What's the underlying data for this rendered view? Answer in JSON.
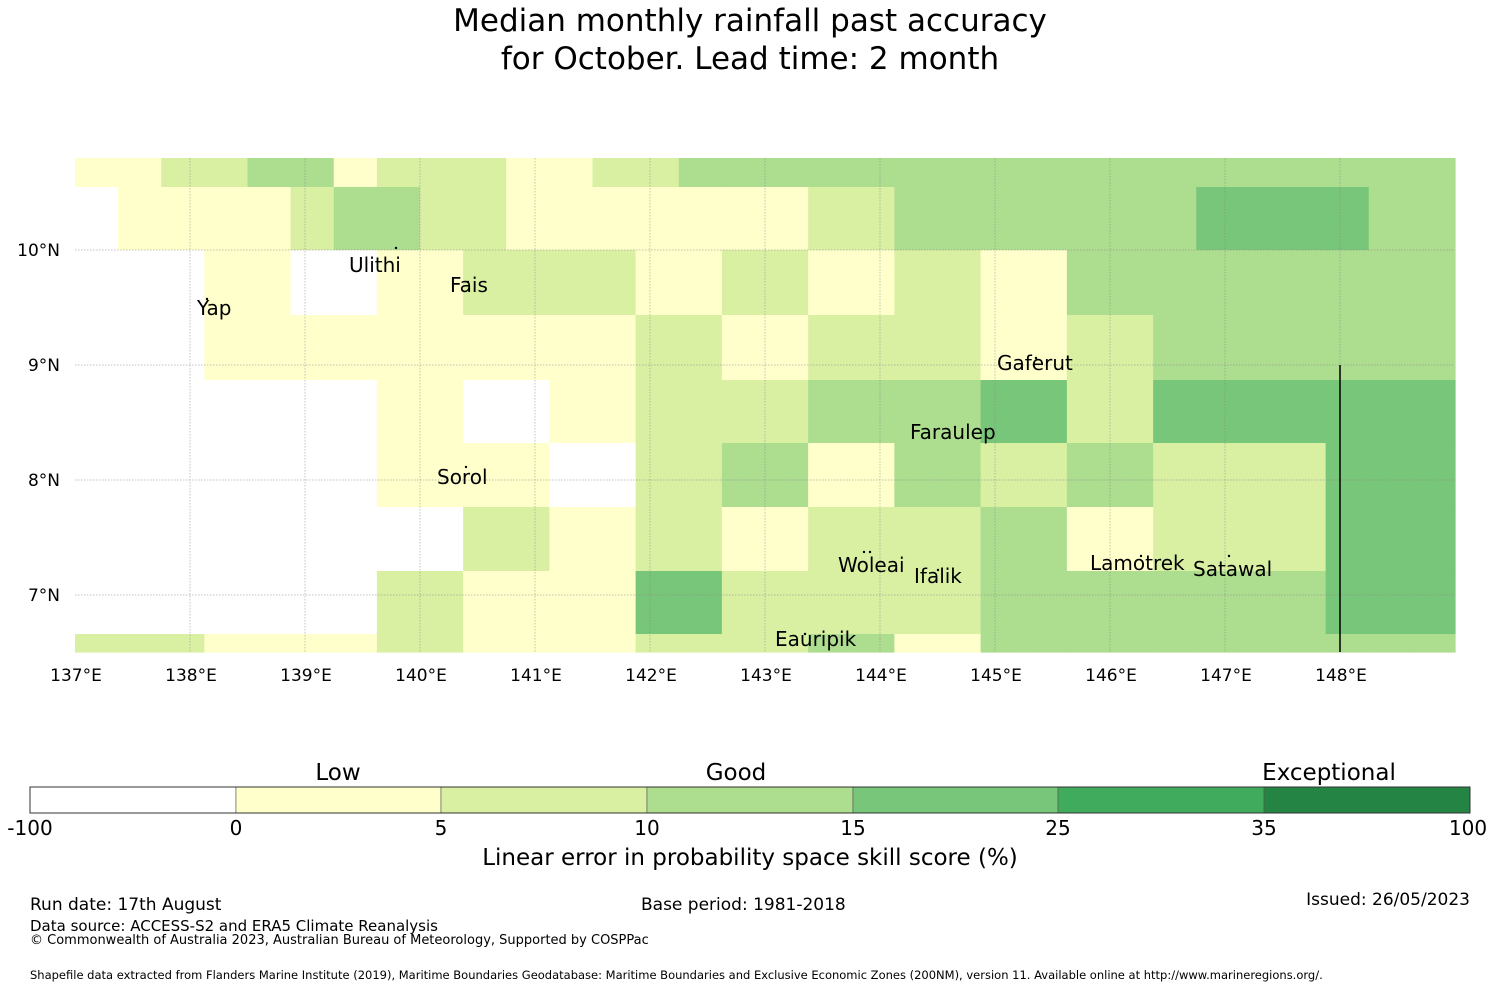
{
  "title": {
    "line1": "Median monthly rainfall past accuracy",
    "line2": "for October. Lead time: 2 month"
  },
  "map": {
    "lon_ticks": [
      "137°E",
      "138°E",
      "139°E",
      "140°E",
      "141°E",
      "142°E",
      "143°E",
      "144°E",
      "145°E",
      "146°E",
      "147°E",
      "148°E"
    ],
    "lat_ticks": [
      "10°N",
      "9°N",
      "8°N",
      "7°N"
    ],
    "places": [
      "Ulithi",
      "Yap",
      "Fais",
      "Gaferut",
      "Faraulep",
      "Sorol",
      "Woleai",
      "Ifalik",
      "Lamotrek",
      "Satawal",
      "Eauripik"
    ],
    "skill_grid": [
      [
        1,
        1,
        2,
        2,
        3,
        3,
        1,
        2,
        2,
        2,
        1,
        1,
        2,
        2,
        3,
        3,
        3,
        3,
        3,
        3,
        3,
        3,
        3,
        3,
        3,
        3,
        3,
        3,
        3,
        3,
        3,
        3
      ],
      [
        0,
        1,
        1,
        1,
        1,
        2,
        3,
        3,
        2,
        2,
        1,
        1,
        1,
        1,
        1,
        1,
        1,
        2,
        2,
        3,
        3,
        3,
        3,
        3,
        3,
        3,
        4,
        4,
        4,
        4,
        3,
        3
      ],
      [
        0,
        0,
        0,
        1,
        1,
        0,
        0,
        1,
        1,
        2,
        2,
        2,
        2,
        1,
        1,
        2,
        2,
        1,
        1,
        2,
        2,
        1,
        1,
        3,
        3,
        3,
        3,
        3,
        3,
        3,
        3,
        3
      ],
      [
        0,
        0,
        0,
        1,
        1,
        1,
        1,
        1,
        1,
        1,
        1,
        1,
        1,
        2,
        2,
        1,
        1,
        2,
        2,
        2,
        2,
        1,
        1,
        2,
        2,
        3,
        3,
        3,
        3,
        3,
        3,
        3
      ],
      [
        0,
        0,
        0,
        0,
        0,
        0,
        0,
        1,
        1,
        0,
        0,
        1,
        1,
        2,
        2,
        2,
        2,
        3,
        3,
        3,
        3,
        4,
        4,
        2,
        2,
        4,
        4,
        4,
        4,
        4,
        4,
        4
      ],
      [
        0,
        0,
        0,
        0,
        0,
        0,
        0,
        1,
        1,
        1,
        1,
        0,
        0,
        2,
        2,
        3,
        3,
        1,
        1,
        3,
        3,
        2,
        2,
        3,
        3,
        2,
        2,
        2,
        2,
        4,
        4,
        4
      ],
      [
        0,
        0,
        0,
        0,
        0,
        0,
        0,
        0,
        0,
        2,
        2,
        1,
        1,
        2,
        2,
        1,
        1,
        2,
        2,
        2,
        2,
        3,
        3,
        1,
        1,
        2,
        2,
        2,
        2,
        4,
        4,
        4
      ],
      [
        0,
        0,
        0,
        0,
        0,
        0,
        0,
        2,
        2,
        1,
        1,
        1,
        1,
        4,
        4,
        2,
        2,
        2,
        2,
        2,
        2,
        3,
        3,
        3,
        3,
        3,
        3,
        3,
        3,
        4,
        4,
        4
      ],
      [
        2,
        2,
        2,
        1,
        1,
        1,
        1,
        2,
        2,
        1,
        1,
        1,
        1,
        2,
        2,
        2,
        2,
        3,
        3,
        1,
        1,
        3,
        3,
        3,
        3,
        3,
        3,
        3,
        3,
        3,
        3,
        3
      ]
    ]
  },
  "colorbar": {
    "title": "Linear error in probability space skill score (%)",
    "categories": [
      "Low",
      "Good",
      "Exceptional"
    ],
    "ticks": [
      "-100",
      "0",
      "5",
      "10",
      "15",
      "25",
      "35",
      "100"
    ],
    "colors": [
      "#ffffff",
      "#ffffcc",
      "#d9f0a3",
      "#addd8e",
      "#78c679",
      "#41ab5d",
      "#238443"
    ]
  },
  "footer": {
    "run_date": "Run date: 17th August",
    "base_period": "Base period: 1981-2018",
    "issued": "Issued: 26/05/2023",
    "data_source": "Data source: ACCESS-S2 and ERA5 Climate Reanalysis",
    "copyright": "© Commonwealth of Australia 2023, Australian Bureau of Meteorology, Supported by COSPPac",
    "shapefile": "Shapefile data extracted from Flanders Marine Institute (2019), Maritime Boundaries Geodatabase: Maritime Boundaries and Exclusive Economic Zones (200NM), version 11. Available online at http://www.marineregions.org/."
  }
}
